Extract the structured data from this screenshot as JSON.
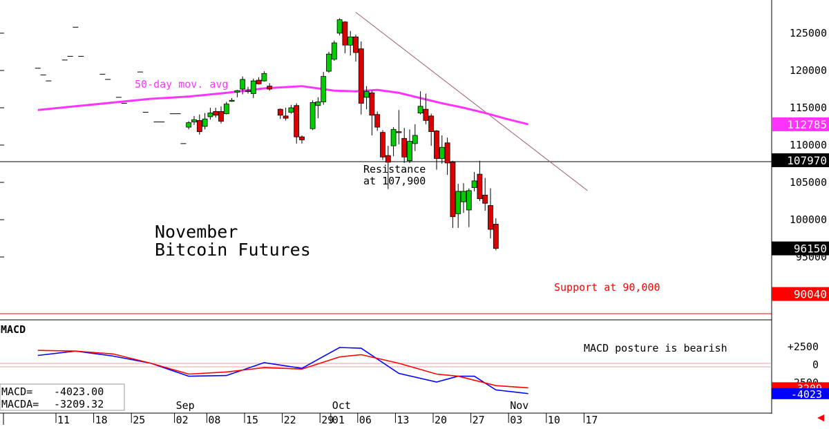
{
  "chart_data": [
    {
      "type": "candlestick",
      "title": "November\nBitcoin Futures",
      "title_lines": [
        "November",
        "Bitcoin Futures"
      ],
      "y_ticks": [
        95000,
        100000,
        105000,
        110000,
        115000,
        120000,
        125000
      ],
      "y_tick_labels": [
        "95000",
        "100000",
        "105000",
        "110000",
        "115000",
        "120000",
        "125000"
      ],
      "ylim": [
        88500,
        129000
      ],
      "x_tick_labels": [
        "11",
        "18",
        "25",
        "02",
        "08",
        "15",
        "22",
        "29",
        "01",
        "06",
        "13",
        "20",
        "27",
        "03",
        "10",
        "17"
      ],
      "month_labels": [
        "Sep",
        "Oct",
        "Nov"
      ],
      "ma_label": "50-day mov. avg",
      "annotations": {
        "resistance": [
          "Resistance",
          "at 107,900"
        ],
        "support": "Support at 90,000"
      },
      "resistance_level": 107900,
      "support_level": 90000,
      "price_badges": [
        {
          "label": "112785",
          "value": 112785,
          "color": "#ff33ff"
        },
        {
          "label": "107970",
          "value": 107970,
          "color": "#000000"
        },
        {
          "label": "96150",
          "value": 96150,
          "color": "#000000"
        },
        {
          "label": "90040",
          "value": 90040,
          "color": "#ff0000"
        }
      ],
      "colors": {
        "up": "#00cc00",
        "down": "#dd0000",
        "ma": "#ff33ff",
        "trendline": "#9c5a6a",
        "support": "#ff0000"
      },
      "trendline": [
        {
          "date": "Oct 05",
          "value": 127800
        },
        {
          "date": "Nov 17",
          "value": 103900
        }
      ],
      "early_ticks": [
        {
          "date": "Aug 07",
          "value": 120300
        },
        {
          "date": "Aug 08",
          "value": 119400
        },
        {
          "date": "Aug 09",
          "value": 118600
        },
        {
          "date": "Aug 12",
          "value": 121400
        },
        {
          "date": "Aug 13",
          "value": 121900
        },
        {
          "date": "Aug 14",
          "value": 125800
        },
        {
          "date": "Aug 15",
          "value": 121900
        },
        {
          "date": "Aug 19",
          "value": 119500
        },
        {
          "date": "Aug 20",
          "value": 118800
        },
        {
          "date": "Aug 22",
          "value": 116400
        },
        {
          "date": "Aug 23",
          "value": 115600
        },
        {
          "date": "Aug 26",
          "value": 119800
        },
        {
          "date": "Aug 27",
          "value": 114400
        },
        {
          "date": "Aug 29",
          "value": 113100
        },
        {
          "date": "Aug 30",
          "value": 113100
        },
        {
          "date": "Sep 01",
          "value": 114200
        },
        {
          "date": "Sep 02",
          "value": 114200
        },
        {
          "date": "Sep 03",
          "value": 110200
        }
      ],
      "candles": [
        {
          "date": "Sep 04",
          "o": 112400,
          "h": 113200,
          "l": 112100,
          "c": 113000
        },
        {
          "date": "Sep 05",
          "o": 113100,
          "h": 113900,
          "l": 112700,
          "c": 113400
        },
        {
          "date": "Sep 06",
          "o": 113300,
          "h": 114100,
          "l": 111400,
          "c": 111800
        },
        {
          "date": "Sep 07",
          "o": 112500,
          "h": 114300,
          "l": 112100,
          "c": 113500
        },
        {
          "date": "Sep 08",
          "o": 113800,
          "h": 115000,
          "l": 113400,
          "c": 114300
        },
        {
          "date": "Sep 09",
          "o": 114500,
          "h": 115000,
          "l": 113700,
          "c": 114000
        },
        {
          "date": "Sep 10",
          "o": 114500,
          "h": 115200,
          "l": 112900,
          "c": 113200
        },
        {
          "date": "Sep 11",
          "o": 114200,
          "h": 115800,
          "l": 114100,
          "c": 115500
        },
        {
          "date": "Sep 12",
          "o": 116000,
          "h": 116300,
          "l": 115800,
          "c": 116000
        },
        {
          "date": "Sep 13",
          "o": 117100,
          "h": 117400,
          "l": 116400,
          "c": 117300
        },
        {
          "date": "Sep 14",
          "o": 117500,
          "h": 119200,
          "l": 116800,
          "c": 118800
        },
        {
          "date": "Sep 15",
          "o": 117300,
          "h": 117800,
          "l": 116900,
          "c": 117300
        },
        {
          "date": "Sep 16",
          "o": 116900,
          "h": 118900,
          "l": 116300,
          "c": 118600
        },
        {
          "date": "Sep 17",
          "o": 118700,
          "h": 119100,
          "l": 118100,
          "c": 118200
        },
        {
          "date": "Sep 18",
          "o": 118600,
          "h": 119900,
          "l": 118500,
          "c": 119600
        },
        {
          "date": "Sep 19",
          "o": 117900,
          "h": 118300,
          "l": 117300,
          "c": 117500
        },
        {
          "date": "Sep 21",
          "o": 114800,
          "h": 114900,
          "l": 113500,
          "c": 114000
        },
        {
          "date": "Sep 22",
          "o": 113900,
          "h": 115000,
          "l": 113300,
          "c": 113600
        },
        {
          "date": "Sep 23",
          "o": 114400,
          "h": 115400,
          "l": 114200,
          "c": 115000
        },
        {
          "date": "Sep 24",
          "o": 115300,
          "h": 115600,
          "l": 110200,
          "c": 111100
        },
        {
          "date": "Sep 25",
          "o": 111100,
          "h": 111300,
          "l": 110200,
          "c": 110700
        },
        {
          "date": "Sep 27",
          "o": 112200,
          "h": 116000,
          "l": 112000,
          "c": 115700
        },
        {
          "date": "Sep 28",
          "o": 115300,
          "h": 116400,
          "l": 113600,
          "c": 115800
        },
        {
          "date": "Sep 29",
          "o": 115800,
          "h": 119800,
          "l": 115400,
          "c": 119200
        },
        {
          "date": "Sep 30",
          "o": 119900,
          "h": 122500,
          "l": 119700,
          "c": 122200
        },
        {
          "date": "Oct 01",
          "o": 121500,
          "h": 124000,
          "l": 121300,
          "c": 123700
        },
        {
          "date": "Oct 02",
          "o": 125000,
          "h": 127000,
          "l": 124700,
          "c": 126800
        },
        {
          "date": "Oct 03",
          "o": 126500,
          "h": 126600,
          "l": 122300,
          "c": 123400
        },
        {
          "date": "Oct 04",
          "o": 123400,
          "h": 125300,
          "l": 122000,
          "c": 124500
        },
        {
          "date": "Oct 05",
          "o": 124500,
          "h": 124800,
          "l": 121200,
          "c": 122400
        },
        {
          "date": "Oct 06",
          "o": 122900,
          "h": 123900,
          "l": 114100,
          "c": 115600
        },
        {
          "date": "Oct 07",
          "o": 116400,
          "h": 117900,
          "l": 114800,
          "c": 117200
        },
        {
          "date": "Oct 08",
          "o": 117000,
          "h": 117300,
          "l": 111300,
          "c": 114000
        },
        {
          "date": "Oct 09",
          "o": 114100,
          "h": 114500,
          "l": 111900,
          "c": 112400
        },
        {
          "date": "Oct 10",
          "o": 111700,
          "h": 112000,
          "l": 108000,
          "c": 108400
        },
        {
          "date": "Oct 11",
          "o": 108600,
          "h": 109900,
          "l": 104100,
          "c": 107700
        },
        {
          "date": "Oct 12",
          "o": 109900,
          "h": 112400,
          "l": 108500,
          "c": 112100
        },
        {
          "date": "Oct 13",
          "o": 111800,
          "h": 114700,
          "l": 110100,
          "c": 111700
        },
        {
          "date": "Oct 14",
          "o": 110900,
          "h": 112300,
          "l": 107600,
          "c": 108400
        },
        {
          "date": "Oct 15",
          "o": 107900,
          "h": 112100,
          "l": 107600,
          "c": 110500
        },
        {
          "date": "Oct 16",
          "o": 110200,
          "h": 112800,
          "l": 109200,
          "c": 111300
        },
        {
          "date": "Oct 17",
          "o": 114300,
          "h": 117200,
          "l": 114100,
          "c": 115200
        },
        {
          "date": "Oct 18",
          "o": 114800,
          "h": 116900,
          "l": 112800,
          "c": 113300
        },
        {
          "date": "Oct 19",
          "o": 113900,
          "h": 114200,
          "l": 109900,
          "c": 111800
        },
        {
          "date": "Oct 20",
          "o": 111900,
          "h": 112000,
          "l": 106700,
          "c": 108200
        },
        {
          "date": "Oct 21",
          "o": 108200,
          "h": 111300,
          "l": 107500,
          "c": 109700
        },
        {
          "date": "Oct 22",
          "o": 110300,
          "h": 111000,
          "l": 106000,
          "c": 107600
        },
        {
          "date": "Oct 23",
          "o": 107700,
          "h": 107900,
          "l": 98900,
          "c": 100400
        },
        {
          "date": "Oct 24",
          "o": 100800,
          "h": 104800,
          "l": 98900,
          "c": 103800
        },
        {
          "date": "Oct 25",
          "o": 102400,
          "h": 104900,
          "l": 100900,
          "c": 103800
        },
        {
          "date": "Oct 26",
          "o": 101300,
          "h": 104200,
          "l": 99000,
          "c": 103900
        },
        {
          "date": "Oct 27",
          "o": 104300,
          "h": 106400,
          "l": 103800,
          "c": 105200
        },
        {
          "date": "Oct 28",
          "o": 106100,
          "h": 107900,
          "l": 102500,
          "c": 102800
        },
        {
          "date": "Oct 29",
          "o": 103300,
          "h": 105600,
          "l": 101200,
          "c": 102200
        },
        {
          "date": "Oct 30",
          "o": 101900,
          "h": 104200,
          "l": 97500,
          "c": 98700
        },
        {
          "date": "Oct 31",
          "o": 99400,
          "h": 100200,
          "l": 95900,
          "c": 96150
        }
      ],
      "ma_points": [
        {
          "date": "Aug 07",
          "value": 114700
        },
        {
          "date": "Aug 14",
          "value": 115200
        },
        {
          "date": "Aug 21",
          "value": 115700
        },
        {
          "date": "Aug 28",
          "value": 116200
        },
        {
          "date": "Sep 04",
          "value": 116500
        },
        {
          "date": "Sep 11",
          "value": 117000
        },
        {
          "date": "Sep 18",
          "value": 117600
        },
        {
          "date": "Sep 25",
          "value": 117900
        },
        {
          "date": "Oct 01",
          "value": 117300
        },
        {
          "date": "Oct 05",
          "value": 117200
        },
        {
          "date": "Oct 09",
          "value": 117400
        },
        {
          "date": "Oct 13",
          "value": 117000
        },
        {
          "date": "Oct 17",
          "value": 116300
        },
        {
          "date": "Oct 21",
          "value": 115600
        },
        {
          "date": "Oct 25",
          "value": 115000
        },
        {
          "date": "Oct 29",
          "value": 114300
        },
        {
          "date": "Nov 02",
          "value": 113500
        },
        {
          "date": "Nov 06",
          "value": 112785
        }
      ]
    },
    {
      "type": "line",
      "title": "MACD",
      "note": "MACD posture is bearish",
      "y_tick_labels": [
        "+2500",
        "0",
        "-2500"
      ],
      "y_ticks": [
        2500,
        0,
        -2500
      ],
      "ylim": [
        -4800,
        4200
      ],
      "readouts": [
        {
          "label": "MACD=",
          "value": "-4023.00"
        },
        {
          "label": "MACDA=",
          "value": "-3209.32"
        }
      ],
      "badges": [
        {
          "label": "-3209",
          "value": -3209,
          "color": "#ff0000"
        },
        {
          "label": "-4023",
          "value": -4023,
          "color": "#0000ff"
        }
      ],
      "series": [
        {
          "name": "MACD",
          "color": "#0000ff",
          "points": [
            {
              "date": "Aug 07",
              "value": 1300
            },
            {
              "date": "Aug 14",
              "value": 1900
            },
            {
              "date": "Aug 21",
              "value": 1200
            },
            {
              "date": "Aug 28",
              "value": 200
            },
            {
              "date": "Sep 04",
              "value": -1600
            },
            {
              "date": "Sep 11",
              "value": -1500
            },
            {
              "date": "Sep 18",
              "value": 300
            },
            {
              "date": "Sep 25",
              "value": -500
            },
            {
              "date": "Oct 02",
              "value": 2400
            },
            {
              "date": "Oct 06",
              "value": 2300
            },
            {
              "date": "Oct 13",
              "value": -1200
            },
            {
              "date": "Oct 20",
              "value": -2400
            },
            {
              "date": "Oct 24",
              "value": -1600
            },
            {
              "date": "Oct 27",
              "value": -1600
            },
            {
              "date": "Oct 31",
              "value": -3500
            },
            {
              "date": "Nov 06",
              "value": -4023
            }
          ]
        },
        {
          "name": "MACDA",
          "color": "#ff0000",
          "points": [
            {
              "date": "Aug 07",
              "value": 2000
            },
            {
              "date": "Aug 14",
              "value": 1900
            },
            {
              "date": "Aug 21",
              "value": 1500
            },
            {
              "date": "Aug 28",
              "value": 200
            },
            {
              "date": "Sep 04",
              "value": -1300
            },
            {
              "date": "Sep 11",
              "value": -1000
            },
            {
              "date": "Sep 18",
              "value": -400
            },
            {
              "date": "Sep 25",
              "value": -600
            },
            {
              "date": "Oct 02",
              "value": 1100
            },
            {
              "date": "Oct 06",
              "value": 1400
            },
            {
              "date": "Oct 13",
              "value": 200
            },
            {
              "date": "Oct 20",
              "value": -1300
            },
            {
              "date": "Oct 24",
              "value": -1600
            },
            {
              "date": "Oct 31",
              "value": -2900
            },
            {
              "date": "Nov 06",
              "value": -3209
            }
          ]
        }
      ]
    }
  ]
}
